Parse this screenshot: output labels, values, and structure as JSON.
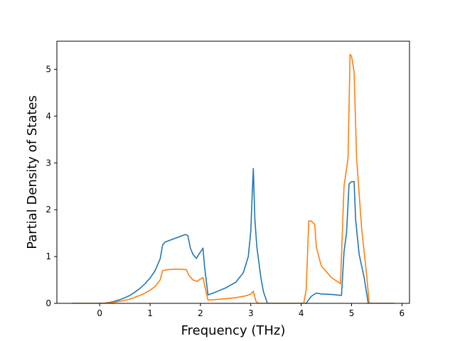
{
  "chart_data": {
    "type": "line",
    "xlabel": "Frequency (THz)",
    "ylabel": "Partial Density of States",
    "xlim": [
      -0.85,
      6.15
    ],
    "ylim": [
      0,
      5.6
    ],
    "xticks": [
      0,
      1,
      2,
      3,
      4,
      5,
      6
    ],
    "yticks": [
      0,
      1,
      2,
      3,
      4,
      5
    ],
    "grid": false,
    "legend": "none",
    "series": [
      {
        "color": "#1f77b4",
        "points": [
          [
            -0.55,
            0
          ],
          [
            0,
            0
          ],
          [
            0.1,
            0.005
          ],
          [
            0.2,
            0.02
          ],
          [
            0.3,
            0.045
          ],
          [
            0.4,
            0.08
          ],
          [
            0.5,
            0.12
          ],
          [
            0.6,
            0.17
          ],
          [
            0.7,
            0.24
          ],
          [
            0.8,
            0.32
          ],
          [
            0.9,
            0.42
          ],
          [
            1.0,
            0.54
          ],
          [
            1.1,
            0.7
          ],
          [
            1.2,
            0.95
          ],
          [
            1.25,
            1.25
          ],
          [
            1.3,
            1.31
          ],
          [
            1.4,
            1.35
          ],
          [
            1.5,
            1.39
          ],
          [
            1.6,
            1.43
          ],
          [
            1.7,
            1.47
          ],
          [
            1.75,
            1.45
          ],
          [
            1.8,
            1.18
          ],
          [
            1.85,
            1.05
          ],
          [
            1.92,
            0.96
          ],
          [
            1.97,
            1.05
          ],
          [
            2.02,
            1.13
          ],
          [
            2.05,
            1.18
          ],
          [
            2.08,
            0.8
          ],
          [
            2.15,
            0.18
          ],
          [
            2.3,
            0.24
          ],
          [
            2.5,
            0.33
          ],
          [
            2.7,
            0.45
          ],
          [
            2.85,
            0.65
          ],
          [
            2.95,
            1.0
          ],
          [
            3.0,
            1.55
          ],
          [
            3.03,
            2.4
          ],
          [
            3.05,
            2.88
          ],
          [
            3.08,
            1.8
          ],
          [
            3.12,
            1.2
          ],
          [
            3.2,
            0.55
          ],
          [
            3.25,
            0.25
          ],
          [
            3.33,
            0
          ],
          [
            4.1,
            0
          ],
          [
            4.15,
            0.08
          ],
          [
            4.2,
            0.15
          ],
          [
            4.3,
            0.22
          ],
          [
            4.4,
            0.2
          ],
          [
            4.6,
            0.19
          ],
          [
            4.8,
            0.17
          ],
          [
            4.85,
            1.1
          ],
          [
            4.9,
            1.5
          ],
          [
            4.95,
            2.55
          ],
          [
            5.0,
            2.6
          ],
          [
            5.05,
            2.6
          ],
          [
            5.08,
            1.8
          ],
          [
            5.15,
            1.05
          ],
          [
            5.25,
            0.55
          ],
          [
            5.33,
            0
          ],
          [
            5.85,
            0
          ]
        ]
      },
      {
        "color": "#ff7f0e",
        "points": [
          [
            -0.55,
            0
          ],
          [
            0,
            0
          ],
          [
            0.1,
            0.003
          ],
          [
            0.2,
            0.01
          ],
          [
            0.3,
            0.025
          ],
          [
            0.4,
            0.045
          ],
          [
            0.5,
            0.065
          ],
          [
            0.6,
            0.09
          ],
          [
            0.7,
            0.13
          ],
          [
            0.8,
            0.17
          ],
          [
            0.9,
            0.22
          ],
          [
            1.0,
            0.28
          ],
          [
            1.1,
            0.36
          ],
          [
            1.2,
            0.5
          ],
          [
            1.25,
            0.7
          ],
          [
            1.35,
            0.72
          ],
          [
            1.5,
            0.73
          ],
          [
            1.6,
            0.73
          ],
          [
            1.72,
            0.72
          ],
          [
            1.77,
            0.6
          ],
          [
            1.85,
            0.5
          ],
          [
            1.93,
            0.47
          ],
          [
            2.0,
            0.52
          ],
          [
            2.05,
            0.55
          ],
          [
            2.1,
            0.3
          ],
          [
            2.15,
            0.07
          ],
          [
            2.4,
            0.09
          ],
          [
            2.7,
            0.12
          ],
          [
            2.9,
            0.16
          ],
          [
            3.0,
            0.2
          ],
          [
            3.05,
            0.26
          ],
          [
            3.1,
            0.05
          ],
          [
            3.15,
            0
          ],
          [
            4.05,
            0
          ],
          [
            4.1,
            0.3
          ],
          [
            4.15,
            1.76
          ],
          [
            4.2,
            1.76
          ],
          [
            4.27,
            1.68
          ],
          [
            4.3,
            1.2
          ],
          [
            4.4,
            0.8
          ],
          [
            4.6,
            0.55
          ],
          [
            4.78,
            0.42
          ],
          [
            4.85,
            2.5
          ],
          [
            4.93,
            3.1
          ],
          [
            4.97,
            5.32
          ],
          [
            5.0,
            5.28
          ],
          [
            5.05,
            4.95
          ],
          [
            5.1,
            3.1
          ],
          [
            5.2,
            1.6
          ],
          [
            5.3,
            0.6
          ],
          [
            5.35,
            0
          ],
          [
            5.85,
            0
          ]
        ]
      }
    ]
  }
}
